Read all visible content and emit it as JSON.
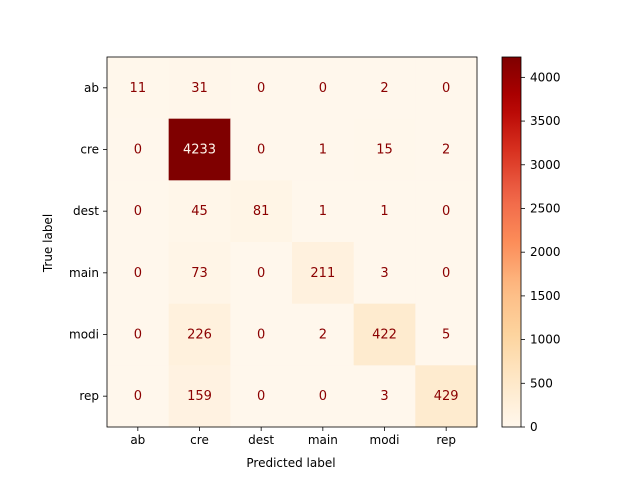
{
  "chart_data": {
    "type": "heatmap",
    "title": "",
    "xlabel": "Predicted label",
    "ylabel": "True label",
    "x_categories": [
      "ab",
      "cre",
      "dest",
      "main",
      "modi",
      "rep"
    ],
    "y_categories": [
      "ab",
      "cre",
      "dest",
      "main",
      "modi",
      "rep"
    ],
    "matrix": [
      [
        11,
        31,
        0,
        0,
        2,
        0
      ],
      [
        0,
        4233,
        0,
        1,
        15,
        2
      ],
      [
        0,
        45,
        81,
        1,
        1,
        0
      ],
      [
        0,
        73,
        0,
        211,
        3,
        0
      ],
      [
        0,
        226,
        0,
        2,
        422,
        5
      ],
      [
        0,
        159,
        0,
        0,
        3,
        429
      ]
    ],
    "colormap": "OrRd",
    "vmin": 0,
    "vmax": 4233,
    "colorbar_ticks": [
      0,
      500,
      1000,
      1500,
      2000,
      2500,
      3000,
      3500,
      4000
    ],
    "text_color_light": "#fff5eb",
    "text_color_dark": "#8b0000",
    "grid": false
  }
}
